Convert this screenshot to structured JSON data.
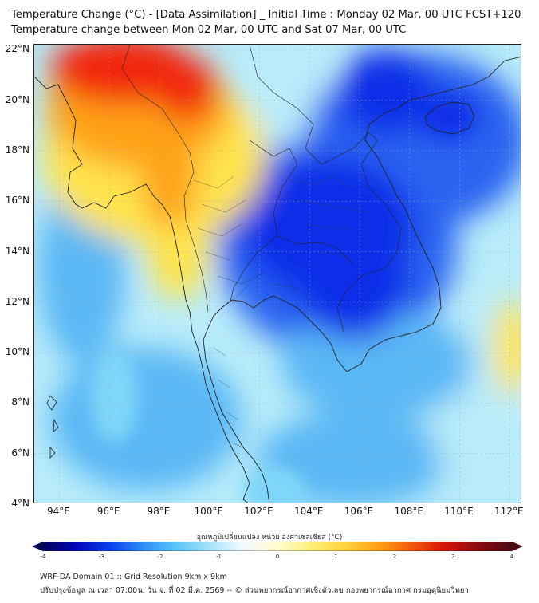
{
  "title": {
    "line1": "Temperature Change (°C) - [Data Assimilation] _ Initial Time : Monday 02 Mar, 00 UTC FCST+120",
    "line2": "Temperature change between Mon 02 Mar, 00 UTC and Sat 07 Mar, 00 UTC"
  },
  "map": {
    "projection": "lat-lon",
    "lon_range": [
      93,
      112.5
    ],
    "lat_range": [
      4,
      22.2
    ],
    "grid": true,
    "land_fill": "#ffffff",
    "colors": {
      "deep_blue": "#0a2ee8",
      "blue": "#2a64f0",
      "light_blue": "#5ab8f5",
      "pale_blue": "#b9ecfa",
      "cyan": "#7fd6f8",
      "yellow": "#ffe44d",
      "orange": "#ffa216",
      "red": "#f2280c",
      "boundary": "#222222"
    }
  },
  "y_ticks": [
    "22°N",
    "20°N",
    "18°N",
    "16°N",
    "14°N",
    "12°N",
    "10°N",
    "8°N",
    "6°N",
    "4°N"
  ],
  "y_tick_values": [
    22,
    20,
    18,
    16,
    14,
    12,
    10,
    8,
    6,
    4
  ],
  "x_ticks": [
    "94°E",
    "96°E",
    "98°E",
    "100°E",
    "102°E",
    "104°E",
    "106°E",
    "108°E",
    "110°E",
    "112°E"
  ],
  "x_tick_values": [
    94,
    96,
    98,
    100,
    102,
    104,
    106,
    108,
    110,
    112
  ],
  "colorbar": {
    "label": "อุณหภูมิเปลี่ยนแปลง หน่วย องศาเซลเซียส (°C)",
    "min": -4,
    "max": 4,
    "tick_labels": [
      "-4",
      "-3",
      "-2",
      "-1",
      "0",
      "1",
      "2",
      "3",
      "4"
    ],
    "tick_values": [
      -4,
      -3,
      -2,
      -1,
      0,
      1,
      2,
      3,
      4
    ],
    "extend": "both",
    "color_stops": [
      "#00005a",
      "#0008b8",
      "#0a40ee",
      "#2f8ef5",
      "#5cc6f7",
      "#a6e6fb",
      "#f4fbfd",
      "#fffbd0",
      "#fff07a",
      "#ffd440",
      "#ffa216",
      "#f25a0c",
      "#d4140a",
      "#8a0c10",
      "#4a0a12"
    ]
  },
  "footer": {
    "line1": "WRF-DA Domain 01 :: Grid Resolution 9km x 9km",
    "line2": "ปรับปรุงข้อมูล ณ เวลา 07:00น. วัน จ. ที่ 02 มี.ค. 2569 -- © ส่วนพยากรณ์อากาศเชิงตัวเลข กองพยากรณ์อากาศ กรมอุตุนิยมวิทยา"
  }
}
